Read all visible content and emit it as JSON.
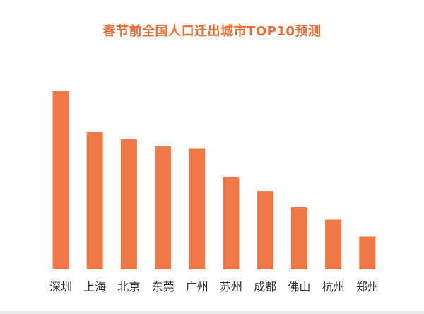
{
  "chart_data": {
    "type": "bar",
    "title": "春节前全国人口迁出城市TOP10预测",
    "xlabel": "",
    "ylabel": "",
    "categories": [
      "深圳",
      "上海",
      "北京",
      "东莞",
      "广州",
      "苏州",
      "成都",
      "佛山",
      "杭州",
      "郑州"
    ],
    "values": [
      100,
      77,
      73,
      69,
      68,
      52,
      44,
      35,
      28,
      18.5
    ],
    "ylim": [
      0,
      100
    ],
    "grid": false,
    "legend": "none"
  },
  "colors": {
    "bar": "#F07845",
    "title": "#EE6A2E",
    "label": "#333333"
  }
}
